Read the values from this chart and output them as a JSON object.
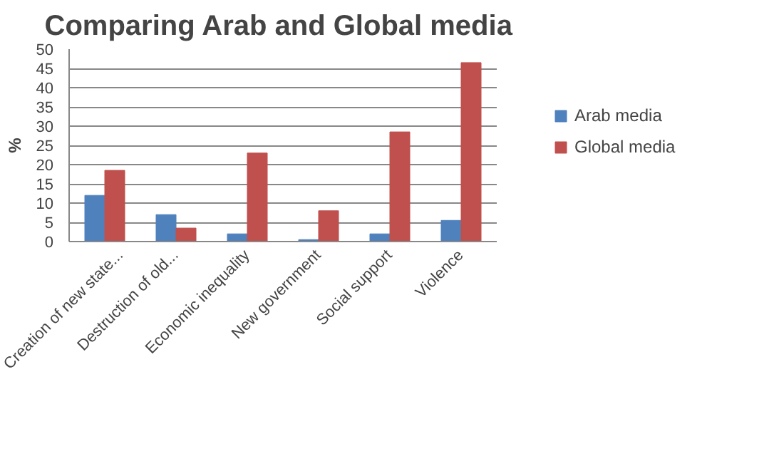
{
  "chart_data": {
    "type": "bar",
    "title": "Comparing  Arab and Global media",
    "ylabel": "%",
    "categories": [
      "Creation of new state...",
      "Destruction of old...",
      "Economic inequality",
      "New government",
      "Social support",
      "Violence"
    ],
    "series": [
      {
        "name": "Arab media",
        "color": "#4f81bd",
        "values": [
          12,
          7,
          2,
          0.5,
          2,
          5.5
        ]
      },
      {
        "name": "Global media",
        "color": "#c0504d",
        "values": [
          18.5,
          3.5,
          23,
          8,
          28.5,
          46.5
        ]
      }
    ],
    "ylim": [
      0,
      50
    ],
    "yticks": [
      0,
      5,
      10,
      15,
      20,
      25,
      30,
      35,
      40,
      45,
      50
    ],
    "grid": "y",
    "legend": "right"
  }
}
